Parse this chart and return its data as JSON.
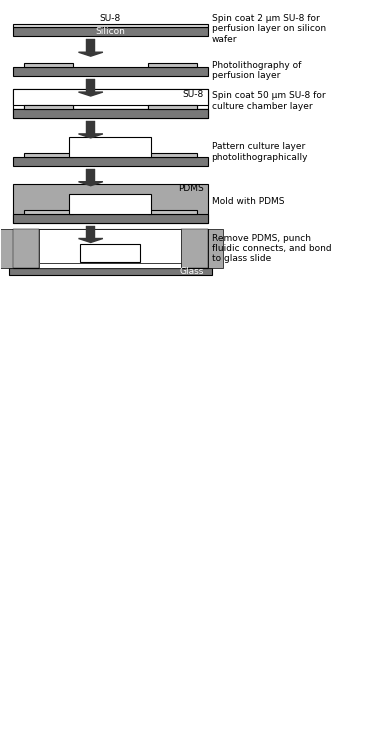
{
  "fig_width": 3.78,
  "fig_height": 7.4,
  "dpi": 100,
  "bg_color": "#ffffff",
  "colors": {
    "silicon_dark": "#787878",
    "su8_thin": "#d8d8d8",
    "pdms": "#a8a8a8",
    "glass": "#888888",
    "arrow": "#383838",
    "white": "#ffffff",
    "light_gray": "#c0c0c0",
    "black": "#000000"
  },
  "steps": [
    "Spin coat 2 μm SU-8 for\nperfusion layer on silicon\nwafer",
    "Photolithography of\nperfusion layer",
    "Spin coat 50 μm SU-8 for\nculture chamber layer",
    "Pattern culture layer\nphotolithographically",
    "Mold with PDMS",
    "Remove PDMS, punch\nfluidic connects, and bond\nto glass slide"
  ]
}
